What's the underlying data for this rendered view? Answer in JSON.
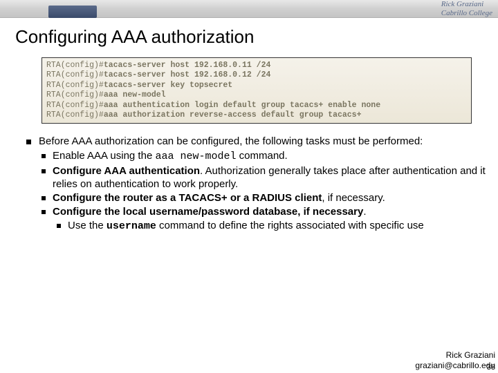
{
  "header": {
    "author": "Rick Graziani",
    "org": "Cabrillo College"
  },
  "title": "Configuring AAA authorization",
  "code": {
    "prompt": "RTA(config)#",
    "lines": [
      "tacacs-server host 192.168.0.11 /24",
      "tacacs-server host 192.168.0.12 /24",
      "tacacs-server key topsecret",
      "aaa new-model",
      "aaa authentication login default group tacacs+ enable none"
    ],
    "highlighted_line": "aaa authorization reverse-access default group tacacs+"
  },
  "bullets": {
    "intro": "Before AAA authorization can be configured, the following tasks must be performed:",
    "items": [
      {
        "pre": "Enable AAA using the ",
        "code": "aaa new-model",
        "post": " command."
      },
      {
        "bold": "Configure AAA authentication",
        "rest": ". Authorization generally takes place after authentication and it relies on authentication to work properly."
      },
      {
        "bold": "Configure the router as a TACACS+ or a RADIUS client",
        "rest": ", if necessary."
      },
      {
        "bold": "Configure the local username/password database, if necessary",
        "rest": "."
      }
    ],
    "sub": {
      "pre": "Use the ",
      "code": "username",
      "post": " command to define the rights associated with specific use"
    }
  },
  "footer": {
    "name": "Rick Graziani",
    "email": "graziani@cabrillo.edu",
    "page": "38"
  }
}
